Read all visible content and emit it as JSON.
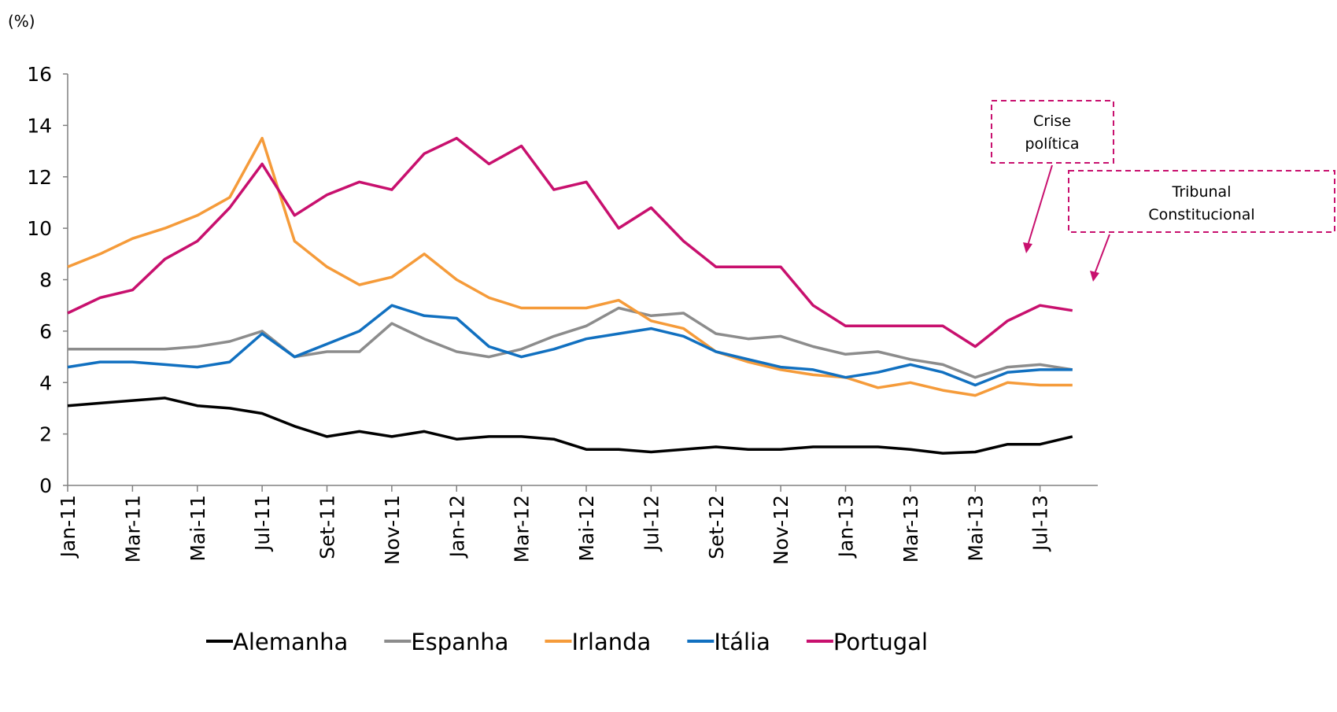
{
  "chart_data": {
    "type": "line",
    "y_label": "(%)",
    "x": [
      "2011-01",
      "2011-02",
      "2011-03",
      "2011-04",
      "2011-05",
      "2011-06",
      "2011-07",
      "2011-08",
      "2011-09",
      "2011-10",
      "2011-11",
      "2011-12",
      "2012-01",
      "2012-02",
      "2012-03",
      "2012-04",
      "2012-05",
      "2012-06",
      "2012-07",
      "2012-08",
      "2012-09",
      "2012-10",
      "2012-11",
      "2012-12",
      "2013-01",
      "2013-02",
      "2013-03",
      "2013-04",
      "2013-05",
      "2013-06",
      "2013-07",
      "2013-08"
    ],
    "xlim": [
      "2011-01",
      "2013-09"
    ],
    "xticks": [
      {
        "value": "2011-01",
        "label": "Jan-11"
      },
      {
        "value": "2011-03",
        "label": "Mar-11"
      },
      {
        "value": "2011-05",
        "label": "Mai-11"
      },
      {
        "value": "2011-07",
        "label": "Jul-11"
      },
      {
        "value": "2011-09",
        "label": "Set-11"
      },
      {
        "value": "2011-11",
        "label": "Nov-11"
      },
      {
        "value": "2012-01",
        "label": "Jan-12"
      },
      {
        "value": "2012-03",
        "label": "Mar-12"
      },
      {
        "value": "2012-05",
        "label": "Mai-12"
      },
      {
        "value": "2012-07",
        "label": "Jul-12"
      },
      {
        "value": "2012-09",
        "label": "Set-12"
      },
      {
        "value": "2012-11",
        "label": "Nov-12"
      },
      {
        "value": "2013-01",
        "label": "Jan-13"
      },
      {
        "value": "2013-03",
        "label": "Mar-13"
      },
      {
        "value": "2013-05",
        "label": "Mai-13"
      },
      {
        "value": "2013-07",
        "label": "Jul-13"
      }
    ],
    "ylim": [
      0,
      16
    ],
    "yticks": [
      0,
      2,
      4,
      6,
      8,
      10,
      12,
      14,
      16
    ],
    "series": [
      {
        "name": "Alemanha",
        "color": "#000000",
        "values": [
          3.1,
          3.2,
          3.3,
          3.4,
          3.1,
          3.0,
          2.8,
          2.3,
          1.9,
          2.1,
          1.9,
          2.1,
          1.8,
          1.9,
          1.9,
          1.8,
          1.4,
          1.4,
          1.3,
          1.4,
          1.5,
          1.4,
          1.4,
          1.5,
          1.5,
          1.5,
          1.4,
          1.25,
          1.3,
          1.6,
          1.6,
          1.9
        ]
      },
      {
        "name": "Espanha",
        "color": "#8c8c8c",
        "values": [
          5.3,
          5.3,
          5.3,
          5.3,
          5.4,
          5.6,
          6.0,
          5.0,
          5.2,
          5.2,
          6.3,
          5.7,
          5.2,
          5.0,
          5.3,
          5.8,
          6.2,
          6.9,
          6.6,
          6.7,
          5.9,
          5.7,
          5.8,
          5.4,
          5.1,
          5.2,
          4.9,
          4.7,
          4.2,
          4.6,
          4.7,
          4.5
        ]
      },
      {
        "name": "Irlanda",
        "color": "#f59b3a",
        "values": [
          8.5,
          9.0,
          9.6,
          10.0,
          10.5,
          11.2,
          13.5,
          9.5,
          8.5,
          7.8,
          8.1,
          9.0,
          8.0,
          7.3,
          6.9,
          6.9,
          6.9,
          7.2,
          6.4,
          6.1,
          5.2,
          4.8,
          4.5,
          4.3,
          4.2,
          3.8,
          4.0,
          3.7,
          3.5,
          4.0,
          3.9,
          3.9
        ]
      },
      {
        "name": "Itália",
        "color": "#1170c0",
        "values": [
          4.6,
          4.8,
          4.8,
          4.7,
          4.6,
          4.8,
          5.9,
          5.0,
          5.5,
          6.0,
          7.0,
          6.6,
          6.5,
          5.4,
          5.0,
          5.3,
          5.7,
          5.9,
          6.1,
          5.8,
          5.2,
          4.9,
          4.6,
          4.5,
          4.2,
          4.4,
          4.7,
          4.4,
          3.9,
          4.4,
          4.5,
          4.5
        ]
      },
      {
        "name": "Portugal",
        "color": "#c8106e",
        "values": [
          6.7,
          7.3,
          7.6,
          8.8,
          9.5,
          10.8,
          12.5,
          10.5,
          11.3,
          11.8,
          11.5,
          12.9,
          13.5,
          12.5,
          13.2,
          11.5,
          11.8,
          10.0,
          10.8,
          9.5,
          8.5,
          8.5,
          8.5,
          7.0,
          6.2,
          6.2,
          6.2,
          6.2,
          5.4,
          6.4,
          7.0,
          6.8
        ]
      }
    ],
    "annotations": [
      {
        "lines": [
          "Crise",
          "política"
        ]
      },
      {
        "lines": [
          "Tribunal",
          "Constitucional"
        ]
      }
    ]
  }
}
